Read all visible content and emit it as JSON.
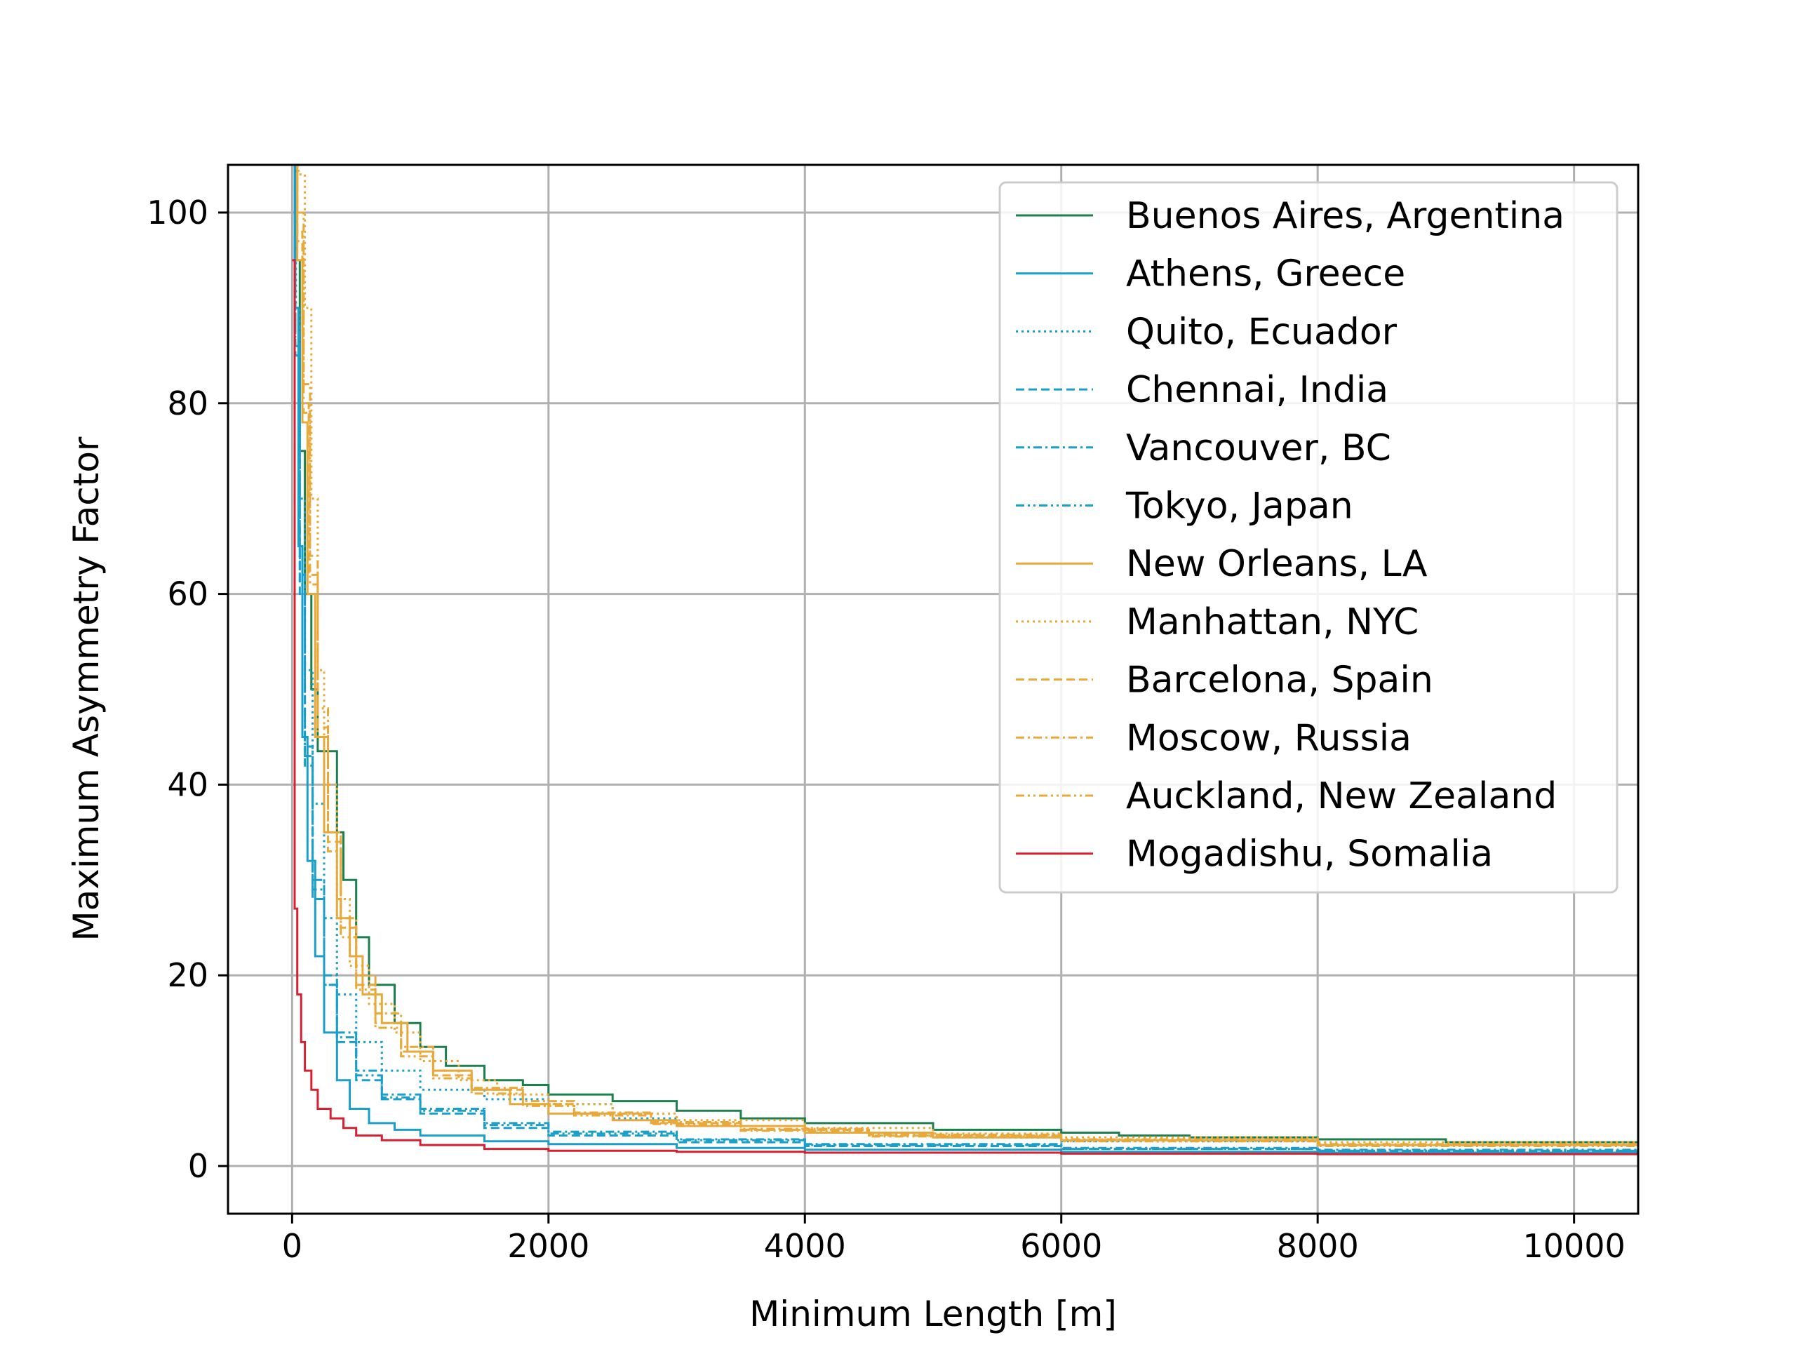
{
  "chart_data": {
    "type": "line",
    "xlabel": "Minimum Length [m]",
    "ylabel": "Maximum Asymmetry Factor",
    "xlim": [
      -500,
      10500
    ],
    "ylim": [
      -5,
      105
    ],
    "xticks": [
      0,
      2000,
      4000,
      6000,
      8000,
      10000
    ],
    "yticks": [
      0,
      20,
      40,
      60,
      80,
      100
    ],
    "grid": true,
    "legend_position": "top-right",
    "series": [
      {
        "name": "Buenos Aires, Argentina",
        "color": "#1b7f4e",
        "dash": "solid",
        "x": [
          0,
          30,
          60,
          100,
          150,
          200,
          300,
          350,
          400,
          500,
          600,
          800,
          1000,
          1200,
          1500,
          1800,
          2000,
          2500,
          3000,
          3500,
          4000,
          5000,
          6000,
          6400,
          6450,
          7000,
          8000,
          9000,
          10500
        ],
        "y": [
          105,
          95,
          75,
          60,
          50,
          43.5,
          43.5,
          35,
          30,
          24,
          19,
          15,
          12.5,
          10.5,
          9,
          8.5,
          7.5,
          6.8,
          5.8,
          5,
          4.5,
          3.8,
          3.5,
          3.5,
          3.2,
          3.0,
          2.8,
          2.5,
          2.0
        ]
      },
      {
        "name": "Athens, Greece",
        "color": "#1a9fcb",
        "dash": "solid",
        "x": [
          0,
          20,
          50,
          80,
          120,
          180,
          250,
          350,
          450,
          600,
          800,
          1000,
          1500,
          2000,
          3000,
          4000,
          6000,
          8000,
          10500
        ],
        "y": [
          105,
          90,
          65,
          45,
          32,
          22,
          14,
          9,
          6,
          4.5,
          3.8,
          3.2,
          2.6,
          2.3,
          1.9,
          1.7,
          1.5,
          1.4,
          1.3
        ]
      },
      {
        "name": "Quito, Ecuador",
        "color": "#1a9fcb",
        "dash": "dotted",
        "x": [
          0,
          30,
          60,
          100,
          160,
          250,
          350,
          500,
          700,
          1000,
          1500,
          2000,
          2500,
          3000,
          4000,
          5000,
          6000,
          8000,
          10500
        ],
        "y": [
          105,
          90,
          70,
          52,
          38,
          26,
          18,
          13,
          10,
          8,
          7,
          6.5,
          5,
          4.2,
          3.5,
          3,
          2.6,
          2.2,
          1.8
        ]
      },
      {
        "name": "Chennai, India",
        "color": "#1a9fcb",
        "dash": "dashed",
        "x": [
          0,
          25,
          60,
          100,
          160,
          250,
          350,
          500,
          700,
          1000,
          1500,
          2000,
          3000,
          4000,
          6000,
          8000,
          10500
        ],
        "y": [
          105,
          85,
          60,
          42,
          28,
          19,
          13,
          9,
          7,
          5.5,
          4,
          3.2,
          2.5,
          2.1,
          1.8,
          1.6,
          1.4
        ]
      },
      {
        "name": "Vancouver, BC",
        "color": "#1a9fcb",
        "dash": "dashdot",
        "x": [
          0,
          25,
          60,
          100,
          160,
          250,
          350,
          500,
          700,
          1000,
          1500,
          2000,
          3000,
          4000,
          6000,
          8000,
          10500
        ],
        "y": [
          105,
          88,
          62,
          44,
          30,
          20,
          14,
          10,
          7.5,
          6,
          4.5,
          3.6,
          2.8,
          2.3,
          1.9,
          1.7,
          1.5
        ]
      },
      {
        "name": "Tokyo, Japan",
        "color": "#1a9fcb",
        "dash": "dashdotdot",
        "x": [
          0,
          25,
          60,
          100,
          160,
          250,
          350,
          500,
          700,
          1000,
          1500,
          2000,
          3000,
          4000,
          6000,
          8000,
          10500
        ],
        "y": [
          105,
          86,
          61,
          43,
          29,
          19,
          13.5,
          9.5,
          7.2,
          5.8,
          4.3,
          3.4,
          2.7,
          2.2,
          1.8,
          1.6,
          1.4
        ]
      },
      {
        "name": "New Orleans, LA",
        "color": "#e8a93a",
        "dash": "solid",
        "x": [
          0,
          40,
          80,
          120,
          180,
          250,
          350,
          450,
          550,
          700,
          900,
          1100,
          1400,
          1700,
          2000,
          2500,
          3000,
          4000,
          5000,
          6000,
          8000,
          10500
        ],
        "y": [
          105,
          95,
          78,
          60,
          45,
          35,
          26,
          22,
          18,
          15,
          12,
          10,
          8,
          6.5,
          5.5,
          4.8,
          4.2,
          3.5,
          3,
          2.7,
          2.2,
          1.8
        ]
      },
      {
        "name": "Manhattan, NYC",
        "color": "#e8a93a",
        "dash": "dotted",
        "x": [
          0,
          50,
          100,
          150,
          200,
          250,
          350,
          450,
          600,
          800,
          1000,
          1300,
          1600,
          2000,
          2500,
          3000,
          4000,
          5000,
          6000,
          8000,
          10500
        ],
        "y": [
          105,
          104,
          90,
          70,
          52,
          40,
          28,
          21,
          17,
          14,
          11,
          9,
          7.5,
          6.5,
          5.5,
          4.8,
          4,
          3.4,
          3,
          2.5,
          2
        ]
      },
      {
        "name": "Barcelona, Spain",
        "color": "#e8a93a",
        "dash": "dashed",
        "x": [
          0,
          40,
          80,
          130,
          200,
          280,
          380,
          500,
          650,
          850,
          1100,
          1400,
          1800,
          2200,
          2800,
          3500,
          4500,
          6000,
          8000,
          10500
        ],
        "y": [
          105,
          98,
          80,
          62,
          46,
          34,
          25,
          19,
          15,
          12,
          9.5,
          8,
          6.5,
          5.5,
          4.5,
          3.8,
          3.2,
          2.7,
          2.2,
          1.8
        ]
      },
      {
        "name": "Moscow, Russia",
        "color": "#e8a93a",
        "dash": "dashdot",
        "x": [
          0,
          40,
          90,
          140,
          200,
          280,
          380,
          500,
          650,
          850,
          1100,
          1400,
          1800,
          2200,
          2800,
          3500,
          4500,
          6000,
          8000,
          10500
        ],
        "y": [
          105,
          100,
          82,
          64,
          48,
          35,
          26,
          20,
          16,
          12.5,
          10,
          8.2,
          6.8,
          5.6,
          4.6,
          3.9,
          3.3,
          2.8,
          2.3,
          1.9
        ]
      },
      {
        "name": "Auckland, New Zealand",
        "color": "#e8a93a",
        "dash": "dashdotdot",
        "x": [
          0,
          40,
          90,
          140,
          200,
          280,
          380,
          500,
          650,
          850,
          1100,
          1400,
          1800,
          2200,
          2800,
          3500,
          4500,
          6000,
          8000,
          10500
        ],
        "y": [
          105,
          97,
          79,
          61,
          45,
          33,
          24,
          18.5,
          14.5,
          11.5,
          9.2,
          7.6,
          6.3,
          5.3,
          4.4,
          3.7,
          3.1,
          2.6,
          2.1,
          1.7
        ]
      },
      {
        "name": "Mogadishu, Somalia",
        "color": "#d62031",
        "dash": "solid",
        "x": [
          0,
          20,
          40,
          70,
          100,
          150,
          200,
          300,
          400,
          500,
          700,
          1000,
          1500,
          2000,
          3000,
          4000,
          6000,
          8000,
          10500
        ],
        "y": [
          95,
          27,
          18,
          13,
          10,
          8,
          6,
          5,
          4,
          3.2,
          2.7,
          2.2,
          1.8,
          1.6,
          1.5,
          1.4,
          1.3,
          1.25,
          1.2
        ]
      }
    ]
  }
}
